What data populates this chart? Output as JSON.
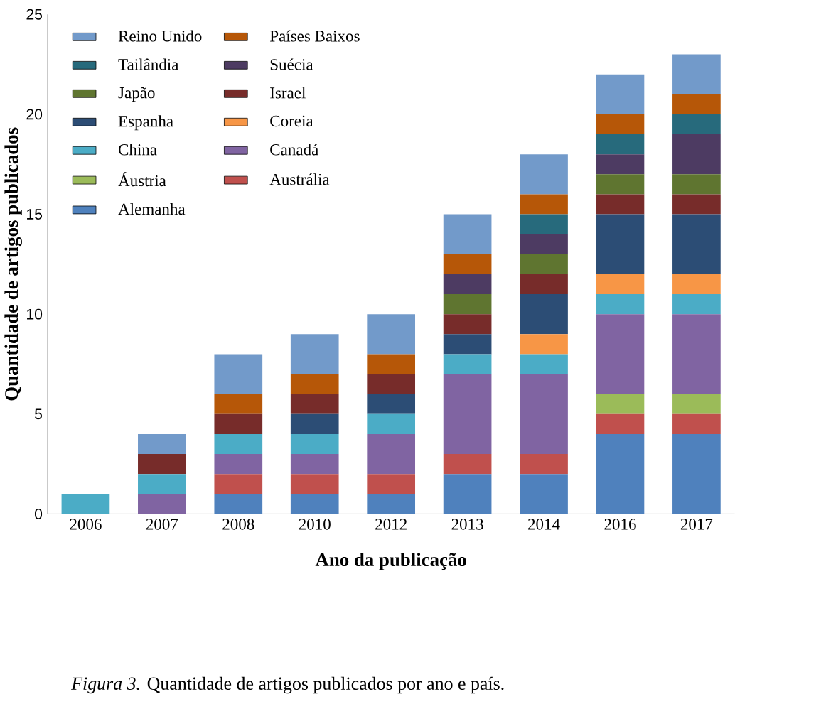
{
  "chart_data": {
    "type": "bar",
    "stacked": true,
    "xlabel": "Ano da publicação",
    "ylabel": "Quantidade de artigos publicados",
    "categories": [
      "2006",
      "2007",
      "2008",
      "2010",
      "2012",
      "2013",
      "2014",
      "2016",
      "2017"
    ],
    "ylim": [
      0,
      25
    ],
    "yticks": [
      0,
      5,
      10,
      15,
      20,
      25
    ],
    "legend": "top left",
    "grid": false,
    "annotations": [
      "*Figura 3.* Quantidade de artigos publicados por ano e país."
    ],
    "series": [
      {
        "name": "Alemanha",
        "color": "#4f81bd",
        "values": [
          0,
          0,
          1,
          1,
          1,
          2,
          2,
          4,
          4
        ]
      },
      {
        "name": "Austrália",
        "color": "#c0504d",
        "values": [
          0,
          0,
          1,
          1,
          1,
          1,
          1,
          1,
          1
        ]
      },
      {
        "name": "Áustria",
        "color": "#9bbb59",
        "values": [
          0,
          0,
          0,
          0,
          0,
          0,
          0,
          1,
          1
        ]
      },
      {
        "name": "Canadá",
        "color": "#8064a2",
        "values": [
          0,
          1,
          1,
          1,
          2,
          4,
          4,
          4,
          4
        ]
      },
      {
        "name": "China",
        "color": "#4bacc6",
        "values": [
          1,
          1,
          1,
          1,
          1,
          1,
          1,
          1,
          1
        ]
      },
      {
        "name": "Coreia",
        "color": "#f79646",
        "values": [
          0,
          0,
          0,
          0,
          0,
          0,
          1,
          1,
          1
        ]
      },
      {
        "name": "Espanha",
        "color": "#2c4d75",
        "values": [
          0,
          0,
          0,
          1,
          1,
          1,
          2,
          3,
          3
        ]
      },
      {
        "name": "Israel",
        "color": "#772c2a",
        "values": [
          0,
          1,
          1,
          1,
          1,
          1,
          1,
          1,
          1
        ]
      },
      {
        "name": "Japão",
        "color": "#5f7530",
        "values": [
          0,
          0,
          0,
          0,
          0,
          1,
          1,
          1,
          1
        ]
      },
      {
        "name": "Suécia",
        "color": "#4d3b62",
        "values": [
          0,
          0,
          0,
          0,
          0,
          1,
          1,
          1,
          2
        ]
      },
      {
        "name": "Tailândia",
        "color": "#276a7c",
        "values": [
          0,
          0,
          0,
          0,
          0,
          0,
          1,
          1,
          1
        ]
      },
      {
        "name": "Países Baixos",
        "color": "#b65708",
        "values": [
          0,
          0,
          1,
          1,
          1,
          1,
          1,
          1,
          1
        ]
      },
      {
        "name": "Reino Unido",
        "color": "#729aca",
        "values": [
          0,
          1,
          2,
          2,
          2,
          2,
          2,
          2,
          2
        ]
      }
    ]
  }
}
